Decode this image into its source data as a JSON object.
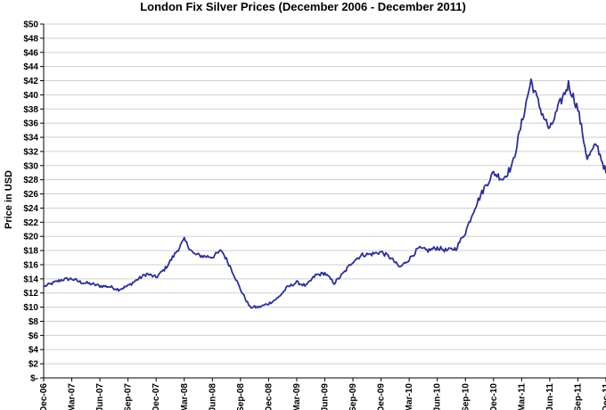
{
  "chart_data": {
    "type": "line",
    "title": "London Fix Silver Prices (December 2006 - December 2011)",
    "xlabel": "",
    "ylabel": "Price in USD",
    "ylim": [
      0,
      50
    ],
    "y_ticks": [
      {
        "value": 0,
        "label": "$-"
      },
      {
        "value": 2,
        "label": "$2"
      },
      {
        "value": 4,
        "label": "$4"
      },
      {
        "value": 6,
        "label": "$6"
      },
      {
        "value": 8,
        "label": "$8"
      },
      {
        "value": 10,
        "label": "$10"
      },
      {
        "value": 12,
        "label": "$12"
      },
      {
        "value": 14,
        "label": "$14"
      },
      {
        "value": 16,
        "label": "$16"
      },
      {
        "value": 18,
        "label": "$18"
      },
      {
        "value": 20,
        "label": "$20"
      },
      {
        "value": 22,
        "label": "$22"
      },
      {
        "value": 24,
        "label": "$24"
      },
      {
        "value": 26,
        "label": "$26"
      },
      {
        "value": 28,
        "label": "$28"
      },
      {
        "value": 30,
        "label": "$30"
      },
      {
        "value": 32,
        "label": "$32"
      },
      {
        "value": 34,
        "label": "$34"
      },
      {
        "value": 36,
        "label": "$36"
      },
      {
        "value": 38,
        "label": "$38"
      },
      {
        "value": 40,
        "label": "$40"
      },
      {
        "value": 42,
        "label": "$42"
      },
      {
        "value": 44,
        "label": "$44"
      },
      {
        "value": 46,
        "label": "$46"
      },
      {
        "value": 48,
        "label": "$48"
      },
      {
        "value": 50,
        "label": "$50"
      }
    ],
    "x_ticks": [
      "Dec-06",
      "Mar-07",
      "Jun-07",
      "Sep-07",
      "Dec-07",
      "Mar-08",
      "Jun-08",
      "Sep-08",
      "Dec-08",
      "Mar-09",
      "Jun-09",
      "Sep-09",
      "Dec-09",
      "Mar-10",
      "Jun-10",
      "Sep-10",
      "Dec-10",
      "Mar-11",
      "Jun-11",
      "Sep-11",
      "Dec-11"
    ],
    "grid": true,
    "line_color": "#2e3192",
    "series": [
      {
        "name": "",
        "x": [
          "Dec-06",
          "Jan-07",
          "Feb-07",
          "Mar-07",
          "Apr-07",
          "May-07",
          "Jun-07",
          "Jul-07",
          "Aug-07",
          "Sep-07",
          "Oct-07",
          "Nov-07",
          "Dec-07",
          "Jan-08",
          "Feb-08",
          "Mar-08",
          "Apr-08",
          "May-08",
          "Jun-08",
          "Jul-08",
          "Aug-08",
          "Sep-08",
          "Oct-08",
          "Nov-08",
          "Dec-08",
          "Jan-09",
          "Feb-09",
          "Mar-09",
          "Apr-09",
          "May-09",
          "Jun-09",
          "Jul-09",
          "Aug-09",
          "Sep-09",
          "Oct-09",
          "Nov-09",
          "Dec-09",
          "Jan-10",
          "Feb-10",
          "Mar-10",
          "Apr-10",
          "May-10",
          "Jun-10",
          "Jul-10",
          "Aug-10",
          "Sep-10",
          "Oct-10",
          "Nov-10",
          "Dec-10",
          "Jan-11",
          "Feb-11",
          "Mar-11",
          "Apr-11",
          "May-11",
          "Jun-11",
          "Jul-11",
          "Aug-11",
          "Sep-11",
          "Oct-11",
          "Nov-11",
          "Dec-11"
        ],
        "values": [
          12.9,
          13.4,
          13.9,
          14.0,
          13.5,
          13.3,
          13.0,
          12.9,
          12.5,
          13.0,
          13.9,
          14.7,
          14.2,
          15.5,
          17.5,
          19.5,
          17.5,
          17.2,
          17.1,
          18.0,
          15.5,
          12.5,
          10.0,
          10.0,
          10.5,
          11.3,
          12.8,
          13.5,
          13.0,
          14.5,
          14.8,
          13.4,
          14.8,
          16.5,
          17.4,
          17.5,
          17.8,
          17.0,
          15.6,
          16.8,
          18.3,
          18.0,
          18.4,
          18.0,
          18.3,
          20.6,
          24.1,
          26.8,
          29.0,
          28.1,
          30.0,
          36.0,
          42.0,
          38.0,
          35.0,
          38.5,
          41.5,
          38.0,
          31.0,
          33.0,
          29.0
        ]
      }
    ]
  }
}
